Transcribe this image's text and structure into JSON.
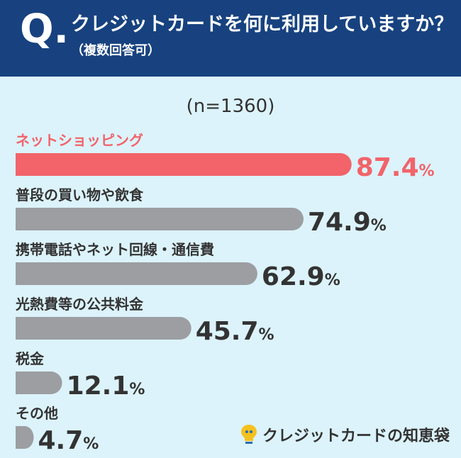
{
  "header": {
    "q_mark": "Q.",
    "title": "クレジットカードを何に利用していますか？",
    "subtitle": "（複数回答可）"
  },
  "sample_label": "(n=1360)",
  "brand": {
    "name": "クレジットカードの知恵袋",
    "icon": "lightbulb-logo-icon"
  },
  "colors": {
    "highlight": "#f2636a",
    "bar": "#9c9ea2",
    "background": "#dcf3fb",
    "header": "#17427f"
  },
  "chart_data": {
    "type": "bar",
    "orientation": "horizontal",
    "title": "",
    "xlabel": "",
    "ylabel": "",
    "unit": "%",
    "xlim": [
      0,
      100
    ],
    "grid": false,
    "categories": [
      "ネットショッピング",
      "普段の買い物や飲食",
      "携帯電話やネット回線・通信費",
      "光熱費等の公共料金",
      "税金",
      "その他"
    ],
    "values": [
      87.4,
      74.9,
      62.9,
      45.7,
      12.1,
      4.7
    ],
    "highlight_index": 0
  }
}
